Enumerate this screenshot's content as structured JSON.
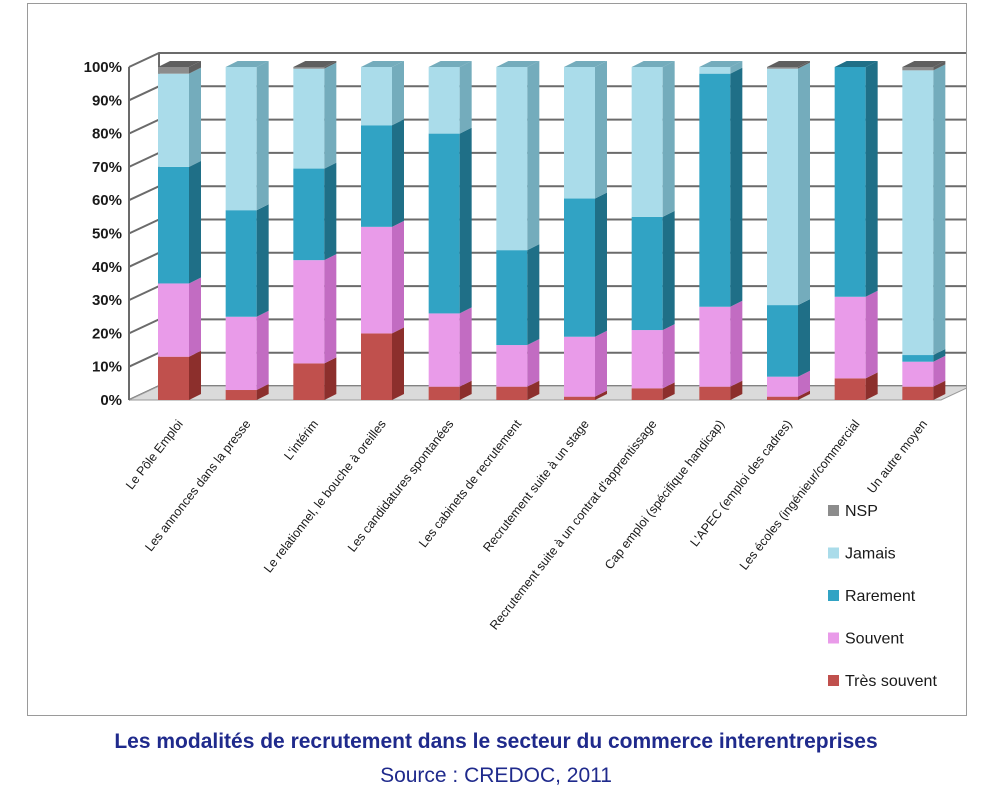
{
  "caption": {
    "title": "Les modalités de recrutement dans le secteur du commerce interentreprises",
    "source": "Source : CREDOC, 2011"
  },
  "chart_data": {
    "type": "bar",
    "stacked": true,
    "three_d": true,
    "title": "",
    "xlabel": "",
    "ylabel": "",
    "ylim": [
      0,
      100
    ],
    "y_ticks": [
      "0%",
      "10%",
      "20%",
      "30%",
      "40%",
      "50%",
      "60%",
      "70%",
      "80%",
      "90%",
      "100%"
    ],
    "grid": true,
    "legend_position": "bottom-right",
    "categories": [
      "Le Pôle Emploi",
      "Les annonces dans la presse",
      "L'intérim",
      "Le relationnel, le bouche à oreilles",
      "Les candidatures spontanées",
      "Les cabinets de recrutement",
      "Recrutement suite à un stage",
      "Recrutement suite à un contrat d'apprentissage",
      "Cap emploi (spécifique handicap)",
      "L'APEC (emploi des cadres)",
      "Les écoles (ingénieur/commercial",
      "Un autre moyen"
    ],
    "series": [
      {
        "name": "Très souvent",
        "color": "#c0504d",
        "side_color": "#8c2f2c",
        "values": [
          13,
          3,
          11,
          20,
          4,
          4,
          1,
          3.5,
          4,
          1,
          6.5,
          4
        ]
      },
      {
        "name": "Souvent",
        "color": "#e99be9",
        "side_color": "#c26cc2",
        "values": [
          22,
          22,
          31,
          32,
          22,
          12.5,
          18,
          17.5,
          24,
          6,
          24.5,
          7.5
        ]
      },
      {
        "name": "Rarement",
        "color": "#31a3c4",
        "side_color": "#1f6f87",
        "values": [
          35,
          32,
          27.5,
          30.5,
          54,
          28.5,
          41.5,
          34,
          70,
          21.5,
          69,
          2
        ]
      },
      {
        "name": "Jamais",
        "color": "#aadcea",
        "side_color": "#74acbc",
        "values": [
          28,
          43,
          30,
          17.5,
          20,
          55,
          39.5,
          45,
          2,
          71,
          0,
          85.5
        ]
      },
      {
        "name": "NSP",
        "color": "#8c8c8c",
        "side_color": "#5f5f5f",
        "values": [
          2,
          0,
          0.5,
          0,
          0,
          0,
          0,
          0,
          0,
          0.5,
          0,
          1
        ]
      }
    ]
  }
}
